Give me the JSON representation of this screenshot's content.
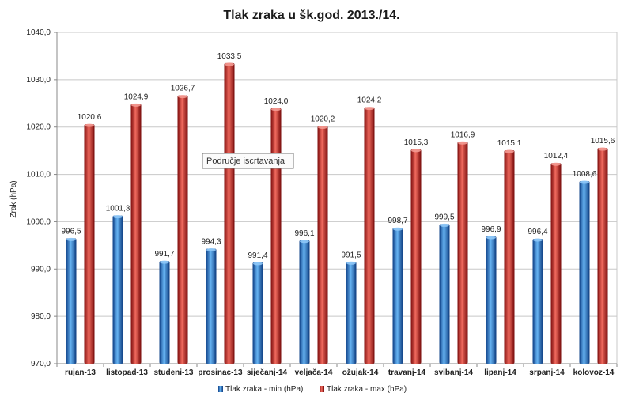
{
  "chart_data": {
    "type": "bar",
    "title": "Tlak zraka u šk.god. 2013./14.",
    "ylabel": "Zrak (hPa)",
    "xlabel": "",
    "ylim": [
      970,
      1040
    ],
    "yticks": [
      970,
      980,
      990,
      1000,
      1010,
      1020,
      1030,
      1040
    ],
    "ytick_labels": [
      "970,0",
      "980,0",
      "990,0",
      "1000,0",
      "1010,0",
      "1020,0",
      "1030,0",
      "1040,0"
    ],
    "grid": true,
    "legend_position": "bottom",
    "categories": [
      "rujan-13",
      "listopad-13",
      "studeni-13",
      "prosinac-13",
      "siječanj-14",
      "veljača-14",
      "ožujak-14",
      "travanj-14",
      "svibanj-14",
      "lipanj-14",
      "srpanj-14",
      "kolovoz-14"
    ],
    "series": [
      {
        "name": "Tlak zraka - min (hPa)",
        "color": "#2e7bc6",
        "values": [
          996.5,
          1001.3,
          991.7,
          994.3,
          991.4,
          996.1,
          991.5,
          998.7,
          999.5,
          996.9,
          996.4,
          1008.6
        ],
        "labels": [
          "996,5",
          "1001,3",
          "991,7",
          "994,3",
          "991,4",
          "996,1",
          "991,5",
          "998,7",
          "999,5",
          "996,9",
          "996,4",
          "1008,6"
        ]
      },
      {
        "name": "Tlak zraka - max (hPa)",
        "color": "#d0302a",
        "values": [
          1020.6,
          1024.9,
          1026.7,
          1033.5,
          1024.0,
          1020.2,
          1024.2,
          1015.3,
          1016.9,
          1015.1,
          1012.4,
          1015.6
        ],
        "labels": [
          "1020,6",
          "1024,9",
          "1026,7",
          "1033,5",
          "1024,0",
          "1020,2",
          "1024,2",
          "1015,3",
          "1016,9",
          "1015,1",
          "1012,4",
          "1015,6"
        ]
      }
    ]
  },
  "tooltip": {
    "text": "Područje iscrtavanja"
  }
}
